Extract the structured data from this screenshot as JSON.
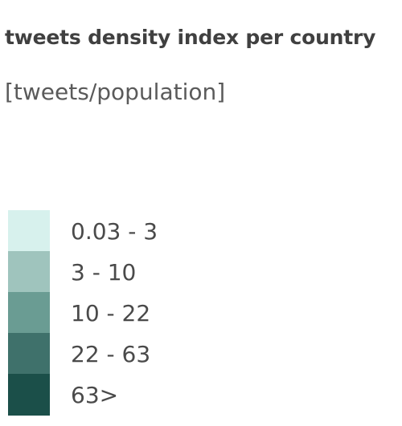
{
  "header": {
    "title": "tweets density index per country",
    "subtitle": "[tweets/population]"
  },
  "legend": {
    "items": [
      {
        "label": "0.03 - 3",
        "color": "#d7f1ed"
      },
      {
        "label": "3 - 10",
        "color": "#9fc4bd"
      },
      {
        "label": "10 - 22",
        "color": "#6a9c93"
      },
      {
        "label": "22 - 63",
        "color": "#3f716b"
      },
      {
        "label": "63>",
        "color": "#1b4f49"
      }
    ]
  }
}
